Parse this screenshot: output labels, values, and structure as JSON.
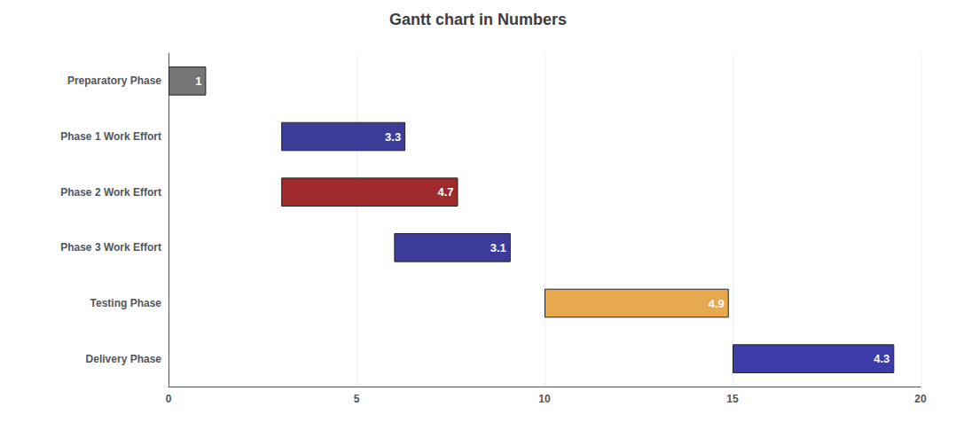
{
  "chart_data": {
    "type": "gantt",
    "title": "Gantt chart in Numbers",
    "orientation": "horizontal",
    "categories": [
      "Preparatory Phase",
      "Phase 1 Work Effort",
      "Phase 2 Work Effort",
      "Phase 3 Work Effort",
      "Testing Phase",
      "Delivery Phase"
    ],
    "starts": [
      0,
      3,
      3,
      6,
      10,
      15
    ],
    "values": [
      1,
      3.3,
      4.7,
      3.1,
      4.9,
      4.3
    ],
    "colors": [
      "#767676",
      "#3B3B99",
      "#9E2A2B",
      "#3B3B99",
      "#E8A84E",
      "#3B3BAA"
    ],
    "data_labels": true,
    "xlim": [
      0,
      20
    ],
    "xticks": [
      0,
      5,
      10,
      15,
      20
    ],
    "grid": true
  }
}
